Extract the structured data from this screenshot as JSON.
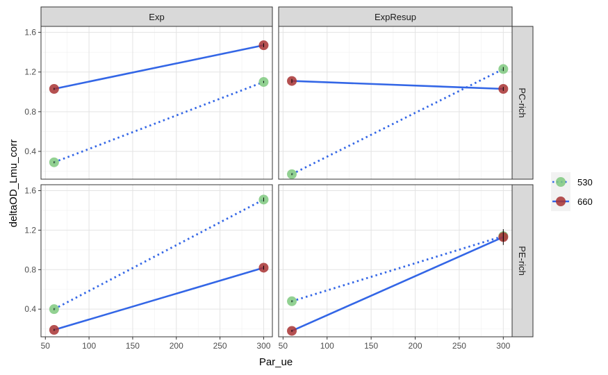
{
  "chart_data": {
    "type": "line",
    "title": "",
    "xlabel": "Par_ue",
    "ylabel": "deltaOD_Lmu_corr",
    "xlim": [
      45,
      310
    ],
    "ylim": [
      0.12,
      1.66
    ],
    "x_ticks": [
      50,
      100,
      150,
      200,
      250,
      300
    ],
    "x_tick_labels": [
      "50",
      "100",
      "150",
      "200",
      "250",
      "300"
    ],
    "y_ticks": [
      0.4,
      0.8,
      1.2,
      1.6
    ],
    "y_tick_labels": [
      "0.4",
      "0.8",
      "1.2",
      "1.6"
    ],
    "grid": true,
    "legend_position": "right",
    "col_facets": [
      "Exp",
      "ExpResup"
    ],
    "row_facets": [
      "PC-rich",
      "PE-rich"
    ],
    "legend": [
      {
        "label": "530",
        "line_style": "dotted",
        "point_color": "#7fc97f",
        "line_color": "#3366e6"
      },
      {
        "label": "660",
        "line_style": "solid",
        "point_color": "#a83232",
        "line_color": "#3366e6"
      }
    ],
    "panels": [
      {
        "col": "Exp",
        "row": "PC-rich",
        "series": [
          {
            "name": "530",
            "x": [
              60,
              300
            ],
            "y": [
              0.29,
              1.1
            ],
            "err": [
              0.01,
              0.01
            ]
          },
          {
            "name": "660",
            "x": [
              60,
              300
            ],
            "y": [
              1.03,
              1.47
            ],
            "err": [
              0.01,
              0.02
            ]
          }
        ]
      },
      {
        "col": "ExpResup",
        "row": "PC-rich",
        "series": [
          {
            "name": "530",
            "x": [
              60,
              300
            ],
            "y": [
              0.17,
              1.23
            ],
            "err": [
              0.01,
              0.02
            ]
          },
          {
            "name": "660",
            "x": [
              60,
              300
            ],
            "y": [
              1.11,
              1.03
            ],
            "err": [
              0.02,
              0.02
            ]
          }
        ]
      },
      {
        "col": "Exp",
        "row": "PE-rich",
        "series": [
          {
            "name": "530",
            "x": [
              60,
              300
            ],
            "y": [
              0.4,
              1.51
            ],
            "err": [
              0.01,
              0.02
            ]
          },
          {
            "name": "660",
            "x": [
              60,
              300
            ],
            "y": [
              0.19,
              0.82
            ],
            "err": [
              0.01,
              0.02
            ]
          }
        ]
      },
      {
        "col": "ExpResup",
        "row": "PE-rich",
        "series": [
          {
            "name": "530",
            "x": [
              60,
              300
            ],
            "y": [
              0.48,
              1.14
            ],
            "err": [
              0.01,
              0.05
            ]
          },
          {
            "name": "660",
            "x": [
              60,
              300
            ],
            "y": [
              0.18,
              1.13
            ],
            "err": [
              0.01,
              0.08
            ]
          }
        ]
      }
    ]
  }
}
